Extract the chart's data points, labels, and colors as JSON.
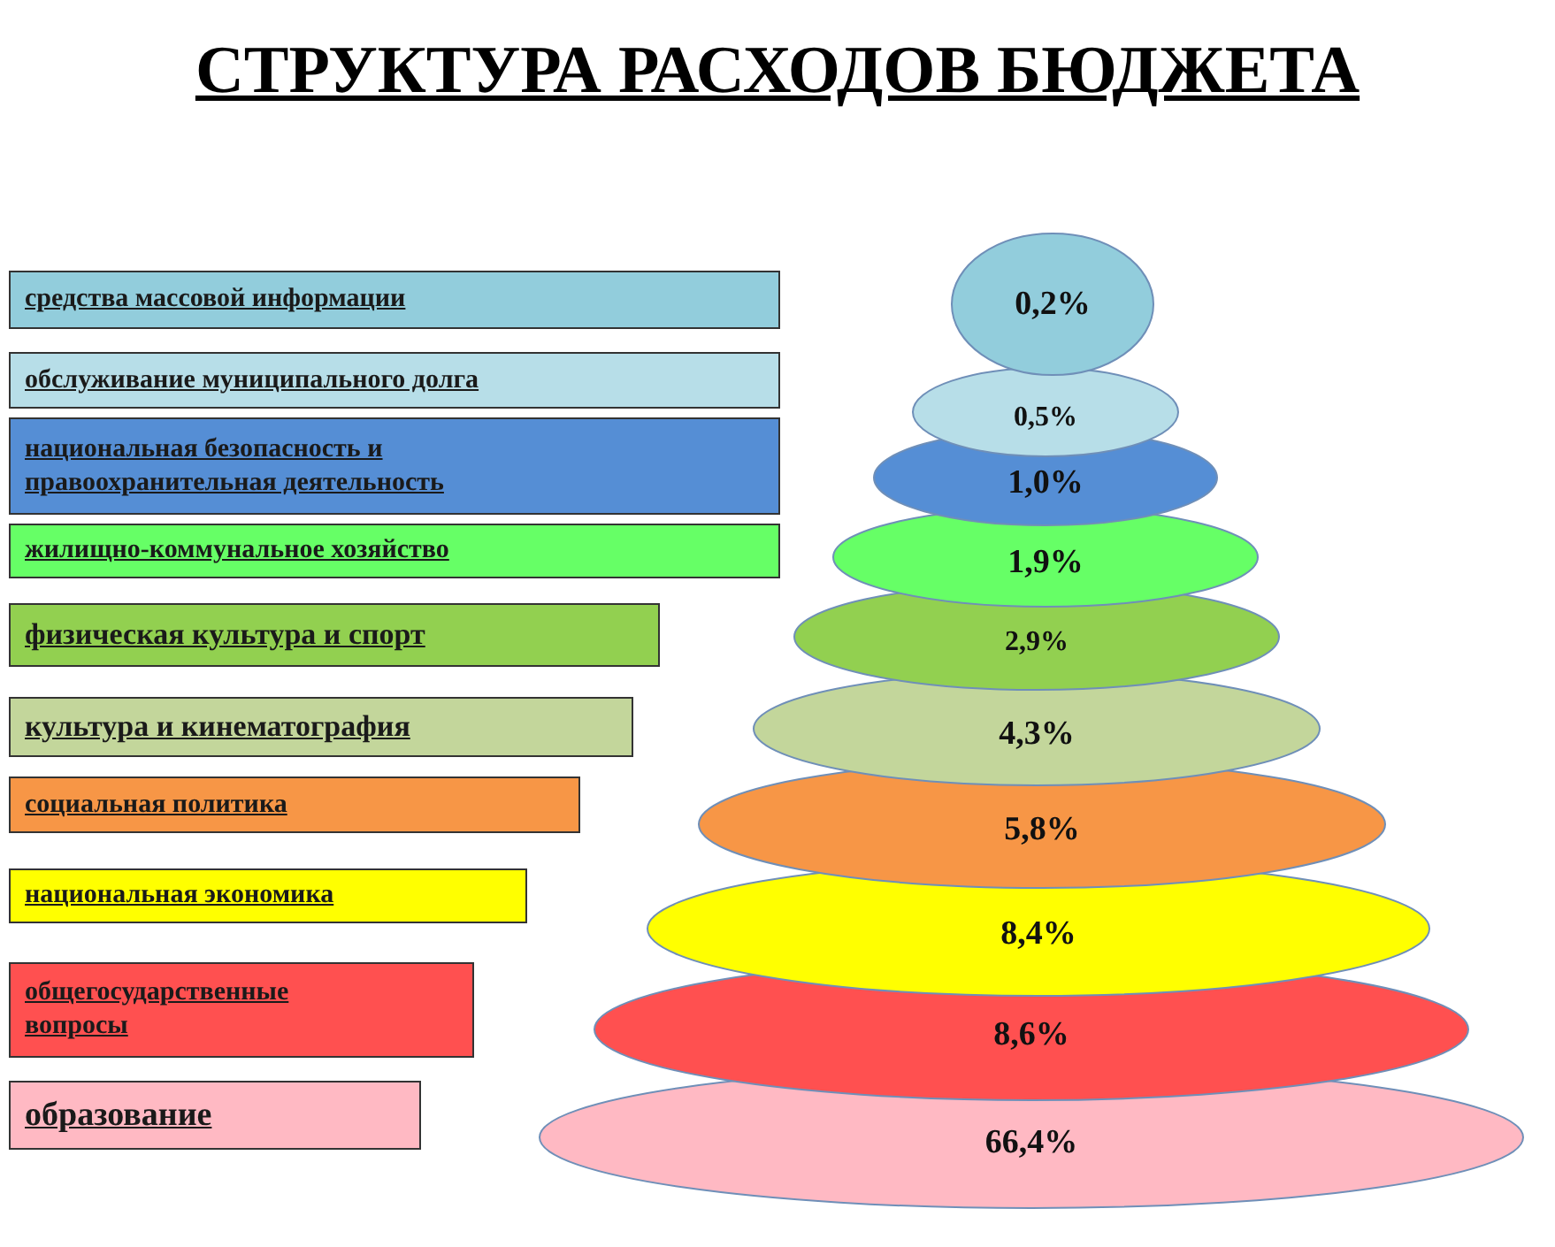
{
  "chart_data": {
    "type": "other",
    "title": "СТРУКТУРА РАСХОДОВ БЮДЖЕТА",
    "categories": [
      "средства массовой информации",
      "обслуживание муниципального долга",
      "национальная безопасность и правоохранительная деятельность",
      "жилищно-коммунальное хозяйство",
      "физическая  культура и  спорт",
      "культура и кинематография",
      "социальная политика",
      "национальная экономика",
      "общегосударственные вопросы",
      "образование"
    ],
    "values": [
      0.2,
      0.5,
      1.0,
      1.9,
      2.9,
      4.3,
      5.8,
      8.4,
      8.6,
      66.4
    ],
    "value_labels": [
      "0,2%",
      "0,5%",
      "1,0%",
      "1,9%",
      "2,9%",
      "4,3%",
      "5,8%",
      "8,4%",
      "8,6%",
      "66,4%"
    ],
    "colors": [
      "#92cddc",
      "#b7dee8",
      "#558ed5",
      "#66ff66",
      "#92d050",
      "#c3d69b",
      "#f79646",
      "#ffff00",
      "#ff5050",
      "#ffb9c3"
    ]
  }
}
